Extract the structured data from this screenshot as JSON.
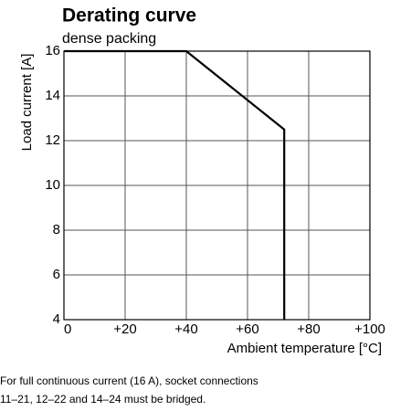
{
  "chart_data": {
    "type": "line",
    "title": "Derating curve",
    "subtitle": "dense packing",
    "x_label": "Ambient temperature [°C]",
    "y_label": "Load current [A]",
    "x": [
      0,
      40,
      72,
      72
    ],
    "values": [
      16,
      16,
      12.5,
      4
    ],
    "color": "#000000",
    "xlim": [
      0,
      100
    ],
    "xticks": [
      0,
      {
        "value": 20,
        "label": "+20"
      },
      {
        "value": 40,
        "label": "+40"
      },
      {
        "value": 60,
        "label": "+60"
      },
      {
        "value": 80,
        "label": "+80"
      },
      {
        "value": 100,
        "label": "+100"
      }
    ],
    "ylim": [
      4,
      16
    ],
    "yticks": [
      4,
      6,
      8,
      10,
      12,
      14,
      16
    ],
    "grid": true,
    "notes": [
      "For full continuous current (16 A), socket connections",
      "11–21, 12–22 and 14–24 must be bridged."
    ]
  }
}
